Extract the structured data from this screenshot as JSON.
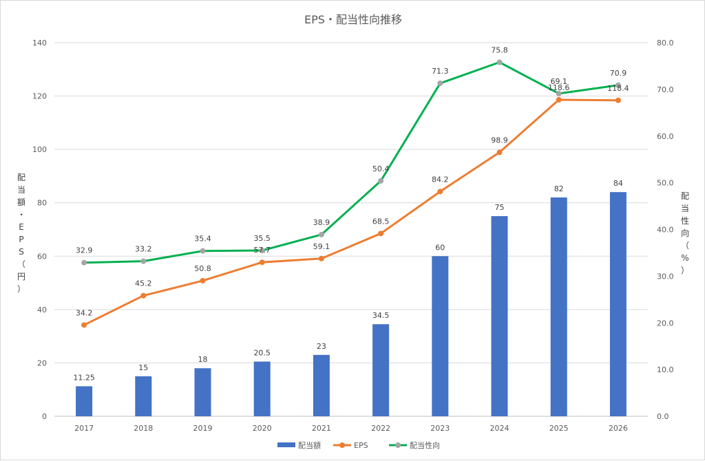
{
  "chart_data": {
    "type": "bar+line",
    "title": "EPS・配当性向推移",
    "categories": [
      "2017",
      "2018",
      "2019",
      "2020",
      "2021",
      "2022",
      "2023",
      "2024",
      "2025",
      "2026"
    ],
    "ylabel_left": "配当額・EPS（円）",
    "ylabel_right": "配当性向（%）",
    "ylim_left": [
      0,
      140
    ],
    "ylim_right": [
      0,
      80
    ],
    "yticks_left": [
      "0",
      "20",
      "40",
      "60",
      "80",
      "100",
      "120",
      "140"
    ],
    "yticks_right": [
      "0.0",
      "10.0",
      "20.0",
      "30.0",
      "40.0",
      "50.0",
      "60.0",
      "70.0",
      "80.0"
    ],
    "grid": true,
    "legend_position": "bottom",
    "series": [
      {
        "name": "配当額",
        "type": "bar",
        "axis": "left",
        "color": "#4472C4",
        "values": [
          11.25,
          15,
          18,
          20.5,
          23,
          34.5,
          60,
          75,
          82,
          84
        ],
        "labels": [
          "11.25",
          "15",
          "18",
          "20.5",
          "23",
          "34.5",
          "60",
          "75",
          "82",
          "84"
        ]
      },
      {
        "name": "EPS",
        "type": "line",
        "axis": "left",
        "color": "#ED7D31",
        "values": [
          34.2,
          45.2,
          50.8,
          57.7,
          59.1,
          68.5,
          84.2,
          98.9,
          118.6,
          118.4
        ],
        "labels": [
          "34.2",
          "45.2",
          "50.8",
          "57.7",
          "59.1",
          "68.5",
          "84.2",
          "98.9",
          "118.6",
          "118.4"
        ]
      },
      {
        "name": "配当性向",
        "type": "line",
        "axis": "right",
        "color": "#00B050",
        "marker_color": "#A5A5A5",
        "values": [
          32.9,
          33.2,
          35.4,
          35.5,
          38.9,
          50.4,
          71.3,
          75.8,
          69.1,
          70.9
        ],
        "labels": [
          "32.9",
          "33.2",
          "35.4",
          "35.5",
          "38.9",
          "50.4",
          "71.3",
          "75.8",
          "69.1",
          "70.9"
        ]
      }
    ]
  }
}
